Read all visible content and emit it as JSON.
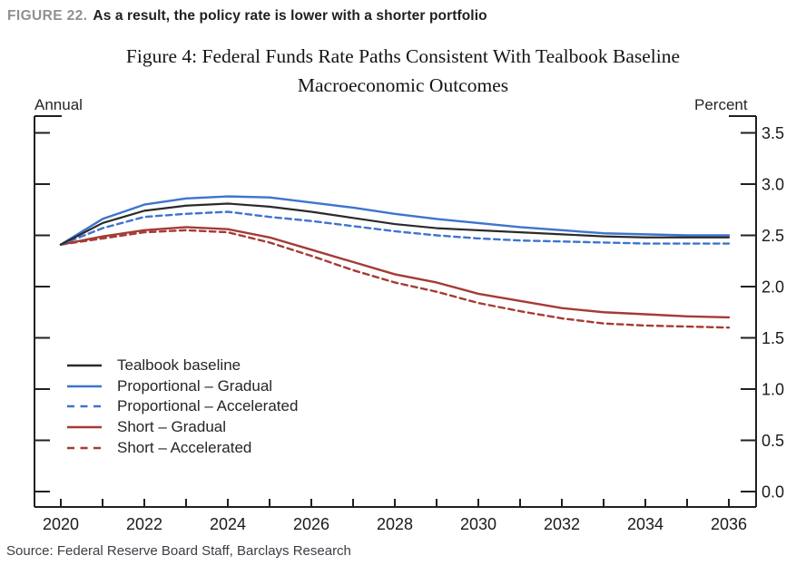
{
  "header": {
    "figure_label": "FIGURE 22.",
    "title": "As a result, the policy rate is lower with a shorter portfolio"
  },
  "figure": {
    "title_line1": "Figure 4: Federal Funds Rate Paths Consistent With Tealbook Baseline",
    "title_line2": "Macroeconomic Outcomes"
  },
  "axes": {
    "left_unit": "Annual",
    "right_unit": "Percent"
  },
  "source": "Source: Federal Reserve Board Staff, Barclays Research",
  "colors": {
    "axis": "#231f20",
    "baseline": "#2b2a29",
    "proportional_blue": "#3e74cc",
    "short_red": "#a53b35",
    "figure_label_gray": "#8e9093"
  },
  "chart_data": {
    "type": "line",
    "title": "Figure 4: Federal Funds Rate Paths Consistent With Tealbook Baseline Macroeconomic Outcomes",
    "xlabel": "Annual",
    "ylabel": "Percent",
    "xlim": [
      2020,
      2036
    ],
    "ylim": [
      0.0,
      3.5
    ],
    "grid": false,
    "legend_position": "lower-left-inside",
    "x": [
      2020,
      2021,
      2022,
      2023,
      2024,
      2025,
      2026,
      2027,
      2028,
      2029,
      2030,
      2031,
      2032,
      2033,
      2034,
      2035,
      2036
    ],
    "x_tick_labels": [
      "2020",
      "2022",
      "2024",
      "2026",
      "2028",
      "2030",
      "2032",
      "2034",
      "2036"
    ],
    "y_tick_labels": [
      "0.0",
      "0.5",
      "1.0",
      "1.5",
      "2.0",
      "2.5",
      "3.0",
      "3.5"
    ],
    "series": [
      {
        "name": "Tealbook baseline",
        "color": "#2b2a29",
        "style": "solid",
        "width": 2.2,
        "values": [
          2.41,
          2.62,
          2.74,
          2.79,
          2.81,
          2.78,
          2.73,
          2.67,
          2.61,
          2.57,
          2.55,
          2.53,
          2.51,
          2.49,
          2.48,
          2.48,
          2.48
        ]
      },
      {
        "name": "Proportional – Gradual",
        "color": "#3e74cc",
        "style": "solid",
        "width": 2.4,
        "values": [
          2.41,
          2.66,
          2.8,
          2.86,
          2.88,
          2.87,
          2.82,
          2.77,
          2.71,
          2.66,
          2.62,
          2.58,
          2.55,
          2.52,
          2.51,
          2.5,
          2.5
        ]
      },
      {
        "name": "Proportional – Accelerated",
        "color": "#3e74cc",
        "style": "dashed",
        "width": 2.4,
        "values": [
          2.41,
          2.57,
          2.68,
          2.71,
          2.73,
          2.68,
          2.64,
          2.59,
          2.54,
          2.5,
          2.47,
          2.45,
          2.44,
          2.43,
          2.42,
          2.42,
          2.42
        ]
      },
      {
        "name": "Short – Gradual",
        "color": "#a53b35",
        "style": "solid",
        "width": 2.4,
        "values": [
          2.41,
          2.49,
          2.55,
          2.58,
          2.56,
          2.48,
          2.36,
          2.24,
          2.12,
          2.04,
          1.93,
          1.86,
          1.79,
          1.75,
          1.73,
          1.71,
          1.7
        ]
      },
      {
        "name": "Short – Accelerated",
        "color": "#a53b35",
        "style": "dashed",
        "width": 2.4,
        "values": [
          2.41,
          2.47,
          2.53,
          2.55,
          2.53,
          2.43,
          2.3,
          2.16,
          2.04,
          1.95,
          1.84,
          1.76,
          1.69,
          1.64,
          1.62,
          1.61,
          1.6
        ]
      }
    ]
  }
}
